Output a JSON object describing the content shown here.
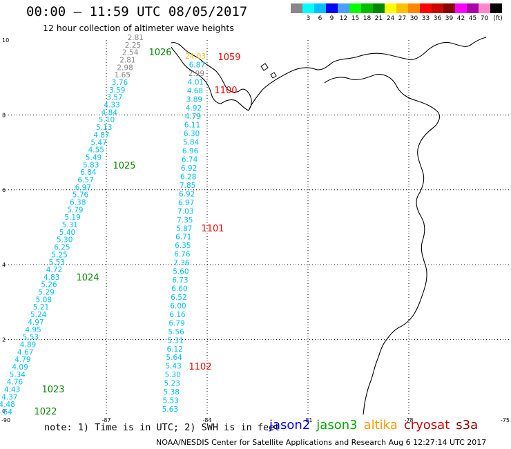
{
  "header": {
    "title": "00:00 – 11:59 UTC 08/05/2017",
    "subtitle": "12 hour collection of altimeter wave heights"
  },
  "colorbar": {
    "unit": "(ft)",
    "colors": [
      "#888888",
      "#00ffff",
      "#00bfff",
      "#0000ff",
      "#4a9fff",
      "#00ff00",
      "#00bb00",
      "#008800",
      "#ffff00",
      "#ffc000",
      "#ff8800",
      "#ff0000",
      "#cc0000",
      "#880000",
      "#ff00ff",
      "#aa00aa",
      "#ff88cc",
      "#000000"
    ],
    "labels": [
      "3",
      "6",
      "9",
      "12",
      "15",
      "18",
      "21",
      "24",
      "27",
      "30",
      "33",
      "36",
      "39",
      "42",
      "45",
      "70"
    ]
  },
  "axes": {
    "x_ticks": [
      "-90",
      "-87",
      "-84",
      "-81",
      "-78",
      "-75"
    ],
    "y_ticks": [
      "0",
      "2",
      "4",
      "6",
      "8",
      "10"
    ]
  },
  "tracks": {
    "track_a": [
      "2.81",
      "2.25",
      "2.54",
      "2.81",
      "2.98",
      "1.65",
      "3.76",
      "3.59",
      "3.57",
      "4.33",
      "4.84",
      "5.10",
      "5.13",
      "4.87",
      "5.47",
      "4.55",
      "5.49",
      "5.83",
      "6.84",
      "6.57",
      "6.97",
      "5.76",
      "6.38",
      "5.79",
      "5.19",
      "5.31",
      "5.40",
      "5.30",
      "6.25",
      "5.25",
      "5.53",
      "4.72",
      "4.83",
      "5.26",
      "5.29",
      "5.08",
      "5.21",
      "5.24",
      "4.97",
      "4.95",
      "5.53",
      "4.89",
      "4.67",
      "4.79",
      "4.09",
      "5.34",
      "4.76",
      "4.43",
      "4.37",
      "4.48",
      "4.64"
    ],
    "track_a_colors": [
      "#888888",
      "#888888",
      "#888888",
      "#888888",
      "#888888",
      "#888888",
      "#00bfff",
      "#00bfff",
      "#00bfff",
      "#00bfff",
      "#00bfff",
      "#00bfff",
      "#00bfff",
      "#00bfff",
      "#00bfff",
      "#00bfff",
      "#00bfff",
      "#00bfff",
      "#00bfff",
      "#00bfff",
      "#00bfff",
      "#00bfff",
      "#00bfff",
      "#00bfff",
      "#00bfff",
      "#00bfff",
      "#00bfff",
      "#00bfff",
      "#00bfff",
      "#00bfff",
      "#00bfff",
      "#00bfff",
      "#00bfff",
      "#00bfff",
      "#00bfff",
      "#00bfff",
      "#00bfff",
      "#00bfff",
      "#00bfff",
      "#00bfff",
      "#00bfff",
      "#00bfff",
      "#00bfff",
      "#00bfff",
      "#00bfff",
      "#00bfff",
      "#00bfff",
      "#00bfff",
      "#00bfff",
      "#00bfff",
      "#00bfff"
    ],
    "track_b": [
      "24.03",
      "6.87",
      "2.99",
      "4.01",
      "4.68",
      "3.89",
      "4.92",
      "4.79",
      "6.11",
      "6.30",
      "5.84",
      "6.96",
      "6.74",
      "6.92",
      "6.28",
      "7.85",
      "6.92",
      "6.97",
      "7.03",
      "7.35",
      "5.87",
      "6.71",
      "6.35",
      "6.76",
      "7.36",
      "5.60",
      "6.73",
      "6.60",
      "6.52",
      "6.00",
      "6.16",
      "6.79",
      "5.56",
      "5.31",
      "6.12",
      "5.64",
      "5.43",
      "5.30",
      "5.23",
      "5.38",
      "5.53",
      "5.63"
    ],
    "track_b_colors": [
      "#ffc000",
      "#00bfff",
      "#888888",
      "#00bfff",
      "#00bfff",
      "#00bfff",
      "#00bfff",
      "#00bfff",
      "#00bfff",
      "#00bfff",
      "#00bfff",
      "#00bfff",
      "#00bfff",
      "#00bfff",
      "#00bfff",
      "#00bfff",
      "#00bfff",
      "#00bfff",
      "#00bfff",
      "#00bfff",
      "#00bfff",
      "#00bfff",
      "#00bfff",
      "#00bfff",
      "#00bfff",
      "#00bfff",
      "#00bfff",
      "#00bfff",
      "#00bfff",
      "#00bfff",
      "#00bfff",
      "#00bfff",
      "#00bfff",
      "#00bfff",
      "#00bfff",
      "#00bfff",
      "#00bfff",
      "#00bfff",
      "#00bfff",
      "#00bfff",
      "#00bfff",
      "#00bfff"
    ]
  },
  "time_markers": [
    {
      "text": "1026",
      "color": "#008800"
    },
    {
      "text": "1025",
      "color": "#008800"
    },
    {
      "text": "1024",
      "color": "#008800"
    },
    {
      "text": "1023",
      "color": "#008800"
    },
    {
      "text": "1022",
      "color": "#008800"
    },
    {
      "text": "1059",
      "color": "#ff0000"
    },
    {
      "text": "1100",
      "color": "#ff0000"
    },
    {
      "text": "1101",
      "color": "#ff0000"
    },
    {
      "text": "1102",
      "color": "#ff0000"
    }
  ],
  "footer": {
    "note": "note: 1) Time is in UTC; 2) SWH is in feet",
    "credit": "NOAA/NESDIS Center for Satellite Applications and Research   Aug  6 12:27:14 UTC 2017"
  },
  "legend": [
    {
      "name": "jason2",
      "color": "#0000ff"
    },
    {
      "name": "jason3",
      "color": "#00aa00"
    },
    {
      "name": "altika",
      "color": "#ff9900"
    },
    {
      "name": "cryosat",
      "color": "#cc0000"
    },
    {
      "name": "s3a",
      "color": "#880000"
    }
  ]
}
